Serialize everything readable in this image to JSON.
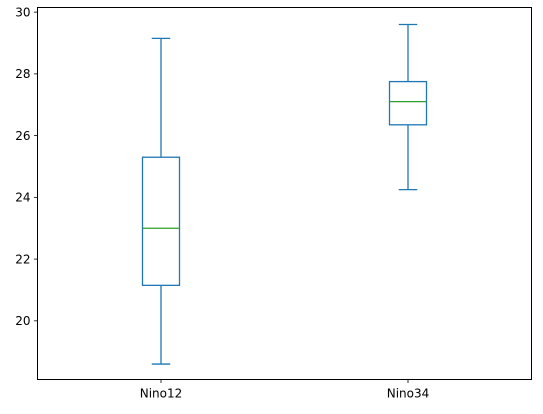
{
  "chart_data": {
    "type": "box",
    "title": "",
    "xlabel": "",
    "ylabel": "",
    "categories": [
      "Nino12",
      "Nino34"
    ],
    "boxes": [
      {
        "label": "Nino12",
        "whislo": 18.6,
        "q1": 21.15,
        "med": 23.0,
        "q3": 25.3,
        "whishi": 29.15
      },
      {
        "label": "Nino34",
        "whislo": 24.25,
        "q1": 26.35,
        "med": 27.1,
        "q3": 27.75,
        "whishi": 29.6
      }
    ],
    "ylim": [
      18.1,
      30.15
    ],
    "yticks": [
      20,
      22,
      24,
      26,
      28,
      30
    ],
    "grid": false,
    "box_color": "#1f77b4",
    "median_color": "#2ca02c"
  }
}
